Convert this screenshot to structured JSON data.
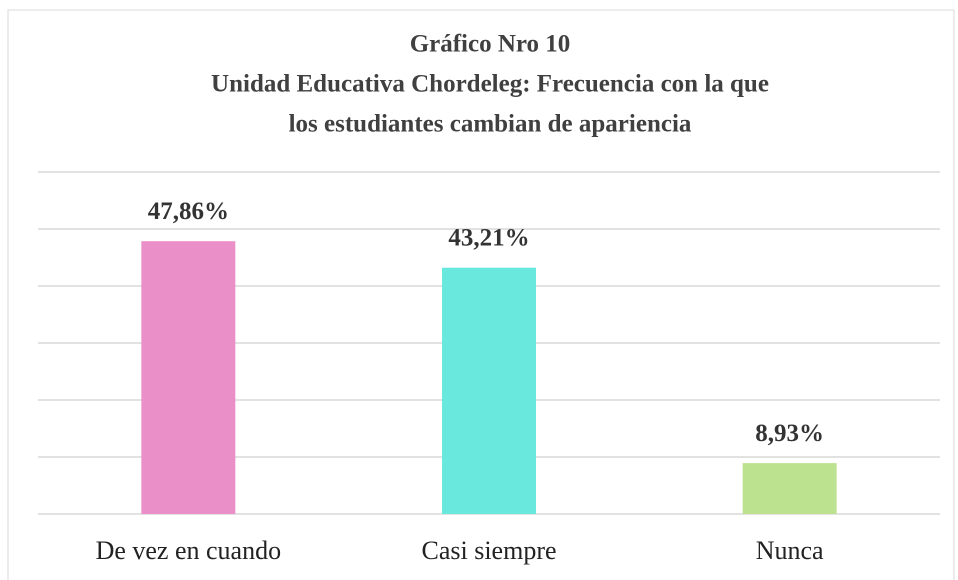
{
  "chart_data": {
    "type": "bar",
    "title": [
      "Gráfico Nro 10",
      "Unidad Educativa Chordeleg: Frecuencia con la que",
      "los estudiantes cambian de apariencia"
    ],
    "categories": [
      "De vez en cuando",
      "Casi siempre",
      "Nunca"
    ],
    "values": [
      47.86,
      43.21,
      8.93
    ],
    "value_labels": [
      "47,86%",
      "43,21%",
      "8,93%"
    ],
    "colors": [
      "#ea8fc8",
      "#69e9de",
      "#bde28f"
    ],
    "ylim": [
      0,
      60
    ],
    "yticks": [
      0,
      10,
      20,
      30,
      40,
      50,
      60
    ],
    "grid": true
  }
}
